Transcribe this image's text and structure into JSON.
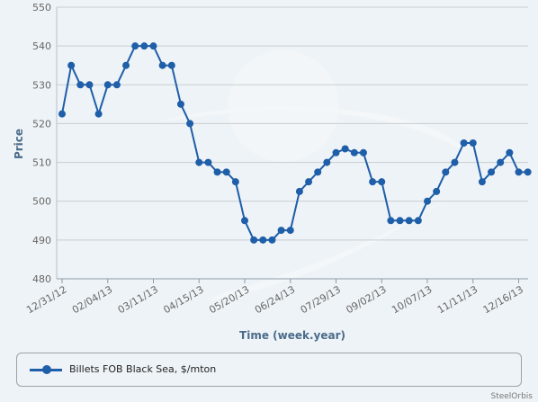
{
  "chart_data": {
    "type": "line",
    "title": "",
    "xlabel": "Time (week.year)",
    "ylabel": "Price",
    "ylim": [
      480,
      550
    ],
    "yticks": [
      480,
      490,
      500,
      510,
      520,
      530,
      540,
      550
    ],
    "grid": true,
    "legend_position": "bottom",
    "series": [
      {
        "name": "Billets FOB Black Sea, $/mton",
        "color": "#1f5ea8",
        "values": [
          522.5,
          535,
          530,
          530,
          522.5,
          530,
          530,
          535,
          540,
          540,
          540,
          535,
          535,
          525,
          520,
          510,
          510,
          507.5,
          507.5,
          505,
          495,
          490,
          490,
          490,
          492.5,
          492.5,
          502.5,
          505,
          507.5,
          510,
          512.5,
          513.5,
          512.5,
          512.5,
          505,
          505,
          495,
          495,
          495,
          495,
          500,
          502.5,
          507.5,
          510,
          515,
          515,
          505,
          507.5,
          510,
          512.5,
          507.5,
          507.5
        ]
      }
    ],
    "x_tick_labels": [
      {
        "label": "12/31/12",
        "index": 0
      },
      {
        "label": "02/04/13",
        "index": 5
      },
      {
        "label": "03/11/13",
        "index": 10
      },
      {
        "label": "04/15/13",
        "index": 15
      },
      {
        "label": "05/20/13",
        "index": 20
      },
      {
        "label": "06/24/13",
        "index": 25
      },
      {
        "label": "07/29/13",
        "index": 30
      },
      {
        "label": "09/02/13",
        "index": 35
      },
      {
        "label": "10/07/13",
        "index": 40
      },
      {
        "label": "11/11/13",
        "index": 45
      },
      {
        "label": "12/16/13",
        "index": 50
      }
    ]
  },
  "credit": "SteelOrbis",
  "colors": {
    "series": "#1f5ea8",
    "grid": "#c8cdd2",
    "background": "#eef3f7"
  }
}
